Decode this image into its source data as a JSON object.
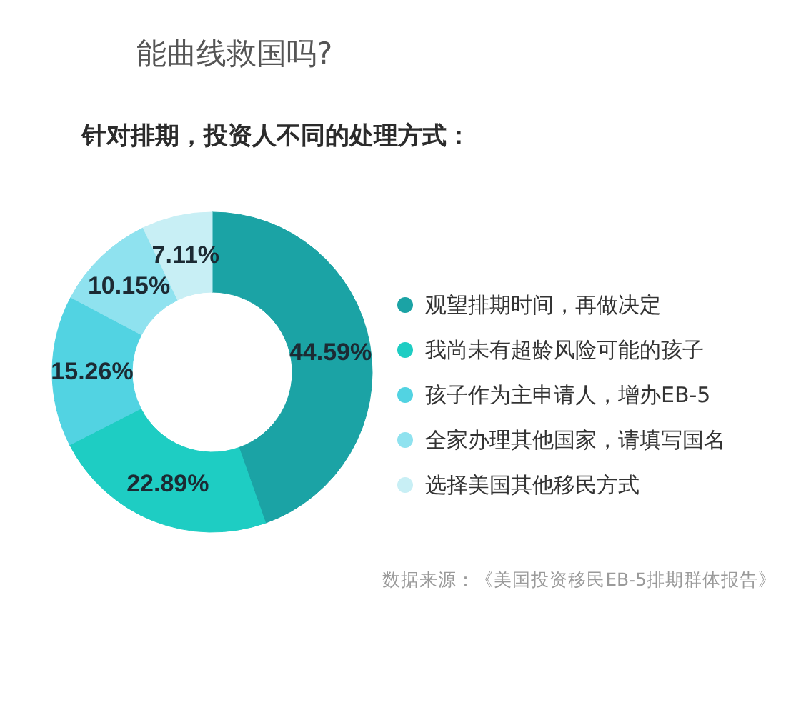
{
  "chart_data": {
    "type": "donut",
    "title": "能曲线救国吗?",
    "subtitle": "针对排期，投资人不同的处理方式：",
    "categories": [
      "观望排期时间，再做决定",
      "我尚未有超龄风险可能的孩子",
      "孩子作为主申请人，增办EB-5",
      "全家办理其他国家，请填写国名",
      "选择美国其他移民方式"
    ],
    "values": [
      44.59,
      22.89,
      15.26,
      10.15,
      7.11
    ],
    "colors": [
      "#1ba3a5",
      "#1ecdc3",
      "#52d3e2",
      "#8fe2ef",
      "#c8eff5"
    ],
    "value_labels": [
      "44.59%",
      "22.89%",
      "15.26%",
      "10.15%",
      "7.11%"
    ],
    "legend": "right",
    "annotations": [
      "数据来源：《美国投资移民EB-5排期群体报告》"
    ]
  }
}
